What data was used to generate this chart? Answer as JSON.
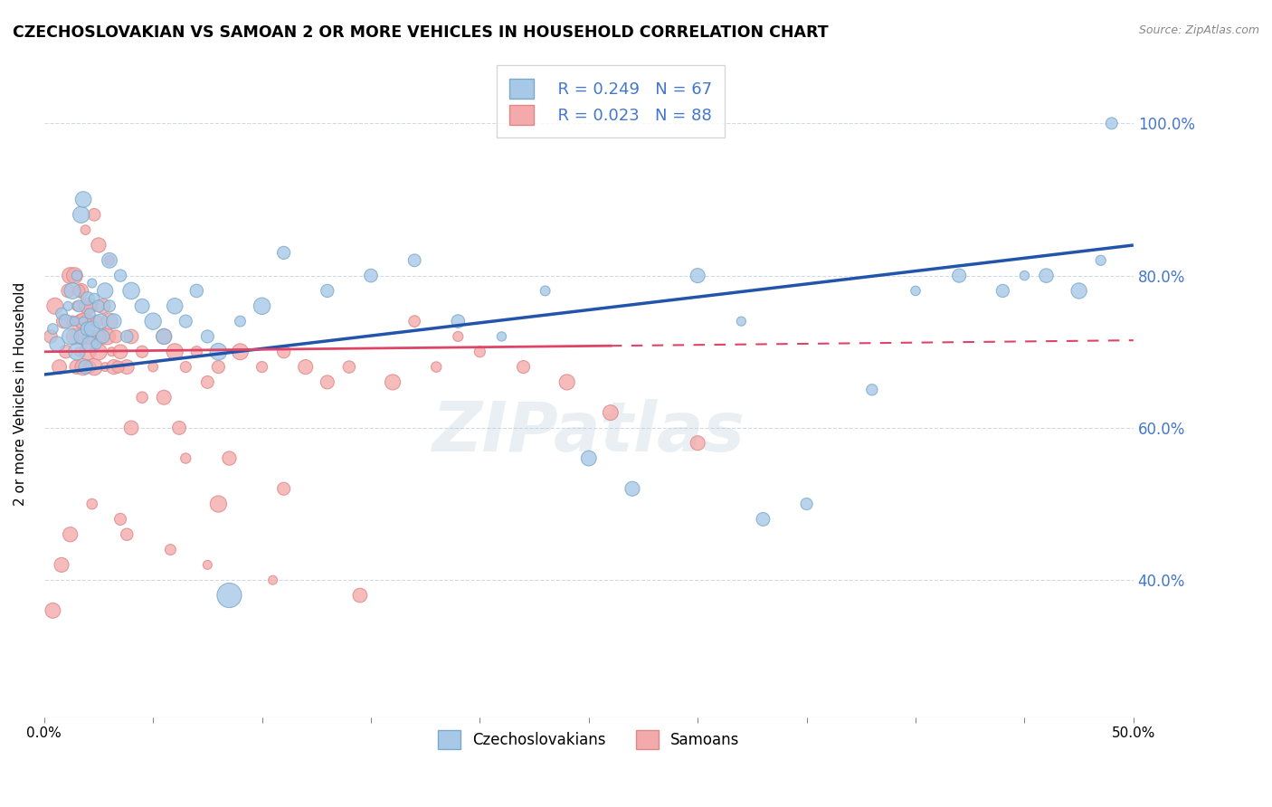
{
  "title": "CZECHOSLOVAKIAN VS SAMOAN 2 OR MORE VEHICLES IN HOUSEHOLD CORRELATION CHART",
  "source": "Source: ZipAtlas.com",
  "ylabel": "2 or more Vehicles in Household",
  "xlim": [
    0.0,
    50.0
  ],
  "ylim": [
    22.0,
    107.0
  ],
  "yticks": [
    40.0,
    60.0,
    80.0,
    100.0
  ],
  "xticks": [
    0.0,
    5.0,
    10.0,
    15.0,
    20.0,
    25.0,
    30.0,
    35.0,
    40.0,
    45.0,
    50.0
  ],
  "czech_color": "#A8C8E8",
  "czech_color_edge": "#7AAAC8",
  "samoan_color": "#F4AAAA",
  "samoan_color_edge": "#DD8888",
  "trend_czech_color": "#2255AA",
  "trend_samoan_color": "#DD4466",
  "ytick_color": "#4477CC",
  "R_czech": 0.249,
  "N_czech": 67,
  "R_samoan": 0.023,
  "N_samoan": 88,
  "legend_color": "#4477CC",
  "samoan_dash_split": 26.0,
  "czech_x": [
    0.4,
    0.6,
    0.8,
    1.0,
    1.1,
    1.2,
    1.3,
    1.4,
    1.5,
    1.5,
    1.6,
    1.7,
    1.7,
    1.8,
    1.8,
    1.9,
    2.0,
    2.0,
    2.1,
    2.1,
    2.2,
    2.2,
    2.3,
    2.4,
    2.5,
    2.6,
    2.7,
    2.8,
    3.0,
    3.0,
    3.2,
    3.5,
    3.8,
    4.0,
    4.5,
    5.0,
    5.5,
    6.0,
    6.5,
    7.0,
    7.5,
    8.0,
    9.0,
    10.0,
    11.0,
    13.0,
    15.0,
    17.0,
    19.0,
    21.0,
    23.0,
    25.0,
    30.0,
    32.0,
    35.0,
    38.0,
    40.0,
    42.0,
    44.0,
    45.0,
    46.0,
    47.5,
    48.5,
    49.0,
    27.0,
    33.0,
    8.5
  ],
  "czech_y": [
    73.0,
    71.0,
    75.0,
    74.0,
    76.0,
    72.0,
    78.0,
    74.0,
    70.0,
    80.0,
    76.0,
    72.0,
    88.0,
    90.0,
    74.0,
    68.0,
    73.0,
    77.0,
    71.0,
    75.0,
    73.0,
    79.0,
    77.0,
    71.0,
    76.0,
    74.0,
    72.0,
    78.0,
    76.0,
    82.0,
    74.0,
    80.0,
    72.0,
    78.0,
    76.0,
    74.0,
    72.0,
    76.0,
    74.0,
    78.0,
    72.0,
    70.0,
    74.0,
    76.0,
    83.0,
    78.0,
    80.0,
    82.0,
    74.0,
    72.0,
    78.0,
    56.0,
    80.0,
    74.0,
    50.0,
    65.0,
    78.0,
    80.0,
    78.0,
    80.0,
    80.0,
    78.0,
    82.0,
    100.0,
    52.0,
    48.0,
    38.0
  ],
  "samoan_x": [
    0.3,
    0.5,
    0.7,
    0.9,
    1.0,
    1.1,
    1.2,
    1.3,
    1.4,
    1.5,
    1.5,
    1.6,
    1.7,
    1.7,
    1.8,
    1.8,
    1.9,
    2.0,
    2.0,
    2.1,
    2.1,
    2.2,
    2.2,
    2.3,
    2.4,
    2.5,
    2.6,
    2.7,
    2.8,
    2.9,
    3.0,
    3.1,
    3.2,
    3.3,
    3.5,
    3.8,
    4.0,
    4.5,
    5.0,
    5.5,
    6.0,
    6.5,
    7.0,
    7.5,
    8.0,
    9.0,
    10.0,
    11.0,
    12.0,
    13.0,
    14.0,
    16.0,
    18.0,
    20.0,
    22.0,
    24.0,
    17.0,
    19.0,
    8.0,
    6.5,
    4.0,
    3.5,
    5.5,
    2.5,
    1.9,
    2.3,
    3.8,
    5.8,
    7.5,
    10.5,
    14.5,
    3.0,
    1.6,
    2.0,
    1.4,
    1.8,
    2.6,
    3.4,
    4.5,
    6.2,
    8.5,
    11.0,
    0.4,
    0.8,
    1.2,
    2.2,
    26.0,
    30.0
  ],
  "samoan_y": [
    72.0,
    76.0,
    68.0,
    74.0,
    70.0,
    78.0,
    80.0,
    74.0,
    72.0,
    76.0,
    68.0,
    70.0,
    74.0,
    78.0,
    72.0,
    68.0,
    76.0,
    74.0,
    70.0,
    72.0,
    68.0,
    76.0,
    72.0,
    68.0,
    74.0,
    70.0,
    72.0,
    76.0,
    68.0,
    72.0,
    74.0,
    70.0,
    68.0,
    72.0,
    70.0,
    68.0,
    72.0,
    70.0,
    68.0,
    72.0,
    70.0,
    68.0,
    70.0,
    66.0,
    68.0,
    70.0,
    68.0,
    70.0,
    68.0,
    66.0,
    68.0,
    66.0,
    68.0,
    70.0,
    68.0,
    66.0,
    74.0,
    72.0,
    50.0,
    56.0,
    60.0,
    48.0,
    64.0,
    84.0,
    86.0,
    88.0,
    46.0,
    44.0,
    42.0,
    40.0,
    38.0,
    82.0,
    78.0,
    76.0,
    80.0,
    74.0,
    72.0,
    68.0,
    64.0,
    60.0,
    56.0,
    52.0,
    36.0,
    42.0,
    46.0,
    50.0,
    62.0,
    58.0
  ]
}
